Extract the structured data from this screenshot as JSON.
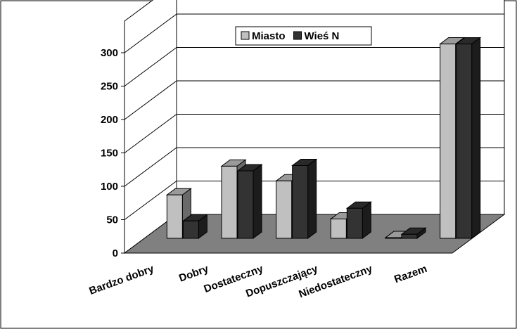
{
  "chart_data": {
    "type": "bar",
    "categories": [
      "Bardzo dobry",
      "Dobry",
      "Dostateczny",
      "Dopuszczający",
      "Niedostateczny",
      "Razem"
    ],
    "series": [
      {
        "name": "Miasto",
        "values": [
          65,
          108,
          86,
          29,
          1,
          291
        ]
      },
      {
        "name": "Wieś N",
        "values": [
          26,
          101,
          109,
          45,
          6,
          291
        ]
      }
    ],
    "y_ticks": [
      "0",
      "50",
      "100",
      "150",
      "200",
      "250",
      "300"
    ],
    "ylim": [
      0,
      300
    ],
    "grid": true,
    "legend_position": "top-center",
    "colors": {
      "Miasto": "#c0c0c0",
      "Wieś N": "#333333",
      "floor": "#808080"
    }
  }
}
